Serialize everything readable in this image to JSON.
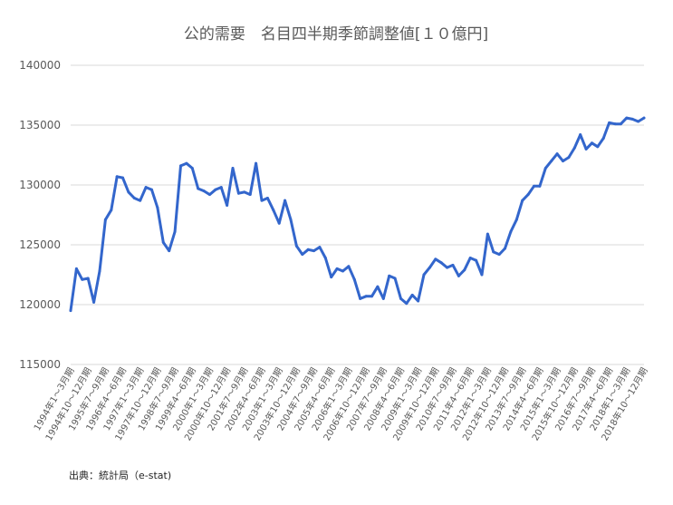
{
  "chart_data": {
    "type": "line",
    "title": "公的需要　名目四半期季節調整値[１０億円]",
    "xlabel": "",
    "ylabel": "",
    "ylim": [
      115000,
      140000
    ],
    "y_ticks": [
      115000,
      120000,
      125000,
      130000,
      135000,
      140000
    ],
    "grid": true,
    "legend": "none",
    "color": "#3366cc",
    "x_tick_labels": [
      "1994年1～3月期",
      "1994年10～12月期",
      "1995年7～9月期",
      "1996年4～6月期",
      "1997年1～3月期",
      "1997年10～12月期",
      "1998年7～9月期",
      "1999年4～6月期",
      "2000年1～3月期",
      "2000年10～12月期",
      "2001年7～9月期",
      "2002年4～6月期",
      "2003年1～3月期",
      "2003年10～12月期",
      "2004年7～9月期",
      "2005年4～6月期",
      "2006年1～3月期",
      "2006年10～12月期",
      "2007年7～9月期",
      "2008年4～6月期",
      "2009年1～3月期",
      "2009年10～12月期",
      "2010年7～9月期",
      "2011年4～6月期",
      "2012年1～3月期",
      "2012年10～12月期",
      "2013年7～9月期",
      "2014年4～6月期",
      "2015年1～3月期",
      "2015年10～12月期",
      "2016年7～9月期",
      "2017年4～6月期",
      "2018年1～3月期",
      "2018年10～12月期"
    ],
    "x_tick_every": 3,
    "values": [
      119500,
      123000,
      122100,
      122200,
      120200,
      122800,
      127100,
      127900,
      130700,
      130600,
      129400,
      128900,
      128700,
      129800,
      129600,
      128100,
      125200,
      124500,
      126100,
      131600,
      131800,
      131400,
      129700,
      129500,
      129200,
      129600,
      129800,
      128300,
      131400,
      129300,
      129400,
      129200,
      131800,
      128700,
      128900,
      127900,
      126800,
      128700,
      127100,
      124900,
      124200,
      124600,
      124500,
      124800,
      123900,
      122300,
      123000,
      122800,
      123200,
      122100,
      120500,
      120700,
      120700,
      121500,
      120500,
      122400,
      122200,
      120500,
      120100,
      120800,
      120300,
      122500,
      123100,
      123800,
      123500,
      123100,
      123300,
      122400,
      122900,
      123900,
      123700,
      122500,
      125900,
      124400,
      124200,
      124700,
      126100,
      127100,
      128700,
      129200,
      129900,
      129900,
      131400,
      132000,
      132600,
      132000,
      132300,
      133100,
      134200,
      133000,
      133500,
      133200,
      133900,
      135200,
      135100,
      135100,
      135600,
      135500,
      135300,
      135600
    ]
  },
  "source": "出典：統計局（e-stat)"
}
